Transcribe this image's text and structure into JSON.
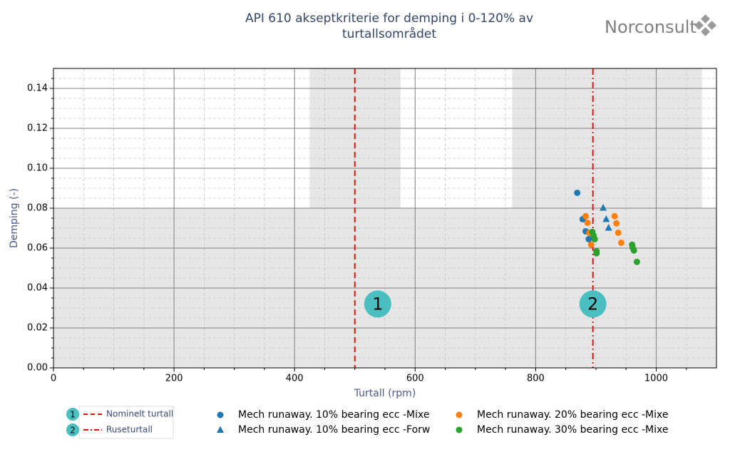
{
  "logo": "Norconsult",
  "chart_data": {
    "type": "scatter",
    "title": [
      "API 610 akseptkriterie for demping i 0-120% av",
      "turtallsområdet"
    ],
    "xlabel": "Turtall (rpm)",
    "ylabel": "Demping (-)",
    "xlim": [
      0,
      1100
    ],
    "ylim": [
      0,
      0.15
    ],
    "xticks": [
      0,
      200,
      400,
      600,
      800,
      1000
    ],
    "yticks": [
      {
        "value": 0,
        "label": "0.00"
      },
      {
        "value": 0.02,
        "label": "0.02"
      },
      {
        "value": 0.04,
        "label": "0.04"
      },
      {
        "value": 0.06,
        "label": "0.06"
      },
      {
        "value": 0.08,
        "label": "0.08"
      },
      {
        "value": 0.1,
        "label": "0.10"
      },
      {
        "value": 0.12,
        "label": "0.12"
      },
      {
        "value": 0.14,
        "label": "0.14"
      }
    ],
    "xminor": [
      50,
      100,
      150,
      250,
      300,
      350,
      450,
      500,
      550,
      650,
      700,
      750,
      850,
      900,
      950,
      1050
    ],
    "yminor": [
      0.005,
      0.01,
      0.015,
      0.025,
      0.03,
      0.035,
      0.045,
      0.05,
      0.055,
      0.065,
      0.07,
      0.075,
      0.085,
      0.09,
      0.095,
      0.105,
      0.11,
      0.115,
      0.125,
      0.13,
      0.135,
      0.145
    ],
    "grid": true,
    "shaded": {
      "color": "#e6e6e6",
      "below": 0.08,
      "bands": [
        [
          425,
          576
        ],
        [
          761,
          1076
        ]
      ]
    },
    "vlines": [
      {
        "name": "Nominelt turtall",
        "x": 500,
        "color": "#e8120c",
        "style": "dashed",
        "badge": "1"
      },
      {
        "name": "Ruseturtall",
        "x": 895,
        "color": "#e8120c",
        "style": "dashdot",
        "badge": "2"
      }
    ],
    "annotations": [
      {
        "text": "1",
        "x": 538,
        "y": 0.032
      },
      {
        "text": "2",
        "x": 895,
        "y": 0.032
      }
    ],
    "badge_color": "#4bbfbf",
    "series": [
      {
        "name": "Mech runaway. 10% bearing ecc -Mixe",
        "color": "#1f77b4",
        "marker": "circle",
        "x": [
          869,
          878,
          883,
          888
        ],
        "values": [
          0.0877,
          0.0745,
          0.0684,
          0.0645
        ]
      },
      {
        "name": "Mech runaway. 10% bearing ecc -Forw",
        "color": "#1f77b4",
        "marker": "triangle",
        "x": [
          912,
          917,
          921
        ],
        "values": [
          0.0802,
          0.0745,
          0.0702
        ]
      },
      {
        "name": "Mech runaway. 20% bearing ecc -Mixe",
        "color": "#ff7f0e",
        "marker": "circle",
        "x": [
          883,
          886,
          889,
          892,
          931,
          934,
          937,
          942
        ],
        "values": [
          0.076,
          0.0727,
          0.0677,
          0.0617,
          0.076,
          0.0724,
          0.0677,
          0.0627
        ]
      },
      {
        "name": "Mech runaway. 30% bearing ecc -Mixe",
        "color": "#2ca02c",
        "marker": "circle",
        "x": [
          894,
          896,
          898,
          901,
          901,
          960,
          961,
          963,
          968
        ],
        "values": [
          0.0681,
          0.0663,
          0.0645,
          0.0585,
          0.0574,
          0.0617,
          0.0602,
          0.0588,
          0.0531
        ]
      }
    ]
  }
}
